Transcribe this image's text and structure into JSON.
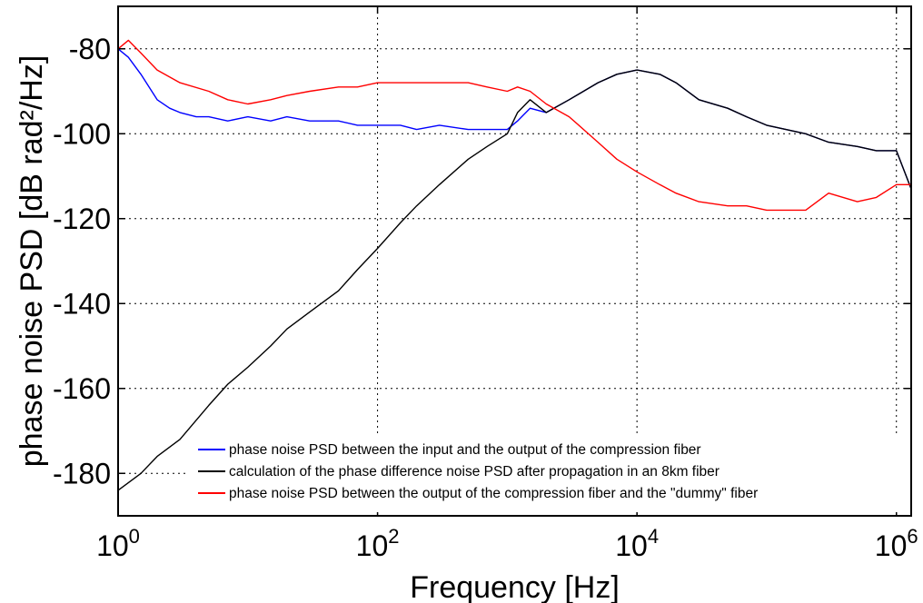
{
  "chart_data": {
    "type": "line",
    "xlabel": "Frequency [Hz]",
    "ylabel": "phase noise PSD [dB rad²/Hz]",
    "xscale": "log",
    "xlim": [
      1,
      1300000
    ],
    "ylim": [
      -190,
      -70
    ],
    "grid": true,
    "legend_position": "bottom-right",
    "x_ticks": [
      {
        "value": 1,
        "base": "10",
        "exp": "0"
      },
      {
        "value": 100,
        "base": "10",
        "exp": "2"
      },
      {
        "value": 10000,
        "base": "10",
        "exp": "4"
      },
      {
        "value": 1000000,
        "base": "10",
        "exp": "6"
      }
    ],
    "y_ticks": [
      {
        "value": -80,
        "label": "-80"
      },
      {
        "value": -100,
        "label": "-100"
      },
      {
        "value": -120,
        "label": "-120"
      },
      {
        "value": -140,
        "label": "-140"
      },
      {
        "value": -160,
        "label": "-160"
      },
      {
        "value": -180,
        "label": "-180"
      }
    ],
    "series": [
      {
        "name": "phase noise PSD between the input and the output of the compression fiber",
        "color": "#0000ff",
        "x": [
          1,
          1.2,
          1.5,
          2,
          2.5,
          3,
          4,
          5,
          7,
          10,
          15,
          20,
          30,
          50,
          70,
          100,
          150,
          200,
          300,
          500,
          700,
          1000,
          1200,
          1500,
          2000,
          3000,
          5000,
          7000,
          10000,
          15000,
          20000,
          30000,
          50000,
          70000,
          100000,
          200000,
          300000,
          500000,
          700000,
          1000000,
          1300000
        ],
        "y": [
          -80,
          -82,
          -86,
          -92,
          -94,
          -95,
          -96,
          -96,
          -97,
          -96,
          -97,
          -96,
          -97,
          -97,
          -98,
          -98,
          -98,
          -99,
          -98,
          -99,
          -99,
          -99,
          -97,
          -94,
          -95,
          -92,
          -88,
          -86,
          -85,
          -86,
          -88,
          -92,
          -94,
          -96,
          -98,
          -100,
          -102,
          -103,
          -104,
          -104,
          -113
        ]
      },
      {
        "name": "calculation of the phase difference noise PSD after propagation in an 8km fiber",
        "color": "#000000",
        "x": [
          1,
          1.5,
          2,
          3,
          5,
          7,
          10,
          15,
          20,
          30,
          50,
          70,
          100,
          150,
          200,
          300,
          500,
          700,
          1000,
          1200,
          1500,
          2000,
          3000,
          5000,
          7000,
          10000,
          15000,
          20000,
          30000,
          50000,
          70000,
          100000,
          200000,
          300000,
          500000,
          700000,
          1000000,
          1300000
        ],
        "y": [
          -184,
          -180,
          -176,
          -172,
          -164,
          -159,
          -155,
          -150,
          -146,
          -142,
          -137,
          -132,
          -127,
          -121,
          -117,
          -112,
          -106,
          -103,
          -100,
          -95,
          -92,
          -95,
          -92,
          -88,
          -86,
          -85,
          -86,
          -88,
          -92,
          -94,
          -96,
          -98,
          -100,
          -102,
          -103,
          -104,
          -104,
          -113
        ]
      },
      {
        "name": "phase noise PSD between the output of the compression fiber and the \"dummy\" fiber",
        "color": "#ff0000",
        "x": [
          1,
          1.2,
          1.5,
          2,
          3,
          5,
          7,
          10,
          15,
          20,
          30,
          50,
          70,
          100,
          150,
          200,
          300,
          500,
          700,
          1000,
          1200,
          1500,
          2000,
          3000,
          5000,
          7000,
          10000,
          15000,
          20000,
          30000,
          50000,
          70000,
          100000,
          150000,
          200000,
          300000,
          500000,
          700000,
          1000000,
          1300000
        ],
        "y": [
          -80,
          -78,
          -81,
          -85,
          -88,
          -90,
          -92,
          -93,
          -92,
          -91,
          -90,
          -89,
          -89,
          -88,
          -88,
          -88,
          -88,
          -88,
          -89,
          -90,
          -89,
          -90,
          -93,
          -96,
          -102,
          -106,
          -109,
          -112,
          -114,
          -116,
          -117,
          -117,
          -118,
          -118,
          -118,
          -114,
          -116,
          -115,
          -112,
          -112
        ]
      }
    ]
  }
}
